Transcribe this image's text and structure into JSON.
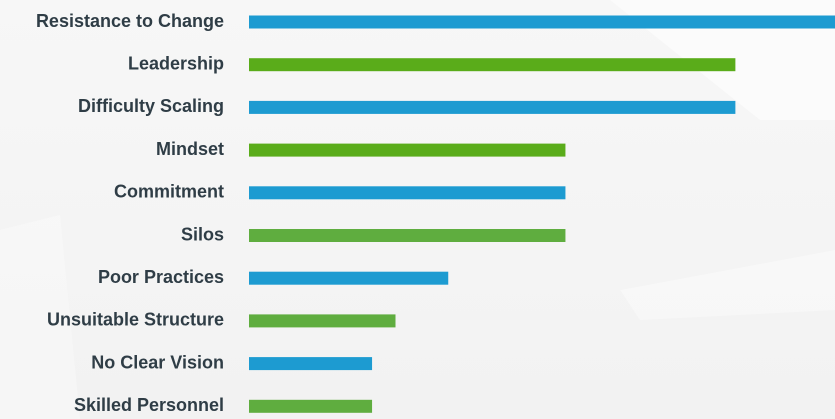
{
  "chart_data": {
    "type": "bar",
    "orientation": "horizontal",
    "categories": [
      "Resistance to Change",
      "Leadership",
      "Difficulty Scaling",
      "Mindset",
      "Commitment",
      "Silos",
      "Poor Practices",
      "Unsuitable Structure",
      "No Clear Vision",
      "Skilled Personnel"
    ],
    "values": [
      100,
      83,
      83,
      54,
      54,
      54,
      34,
      25,
      21,
      21
    ],
    "xlim": [
      0,
      100
    ],
    "grid": false,
    "legend": "none",
    "colors": [
      "#1d9bd1",
      "#5aac1a",
      "#1d9bd1",
      "#5aac1a",
      "#1d9bd1",
      "#5fad3f",
      "#1d9bd1",
      "#5fad3f",
      "#1d9bd1",
      "#5fad3f"
    ]
  }
}
